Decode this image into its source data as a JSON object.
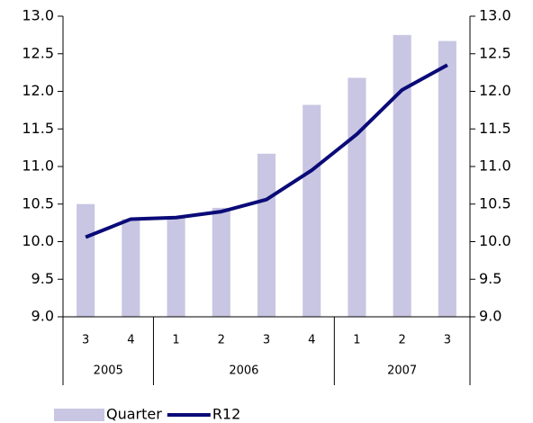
{
  "chart_data": {
    "type": "bar-line",
    "groups": [
      {
        "label": "2005",
        "categories": [
          "3",
          "4"
        ]
      },
      {
        "label": "2006",
        "categories": [
          "1",
          "2",
          "3",
          "4"
        ]
      },
      {
        "label": "2007",
        "categories": [
          "1",
          "2",
          "3"
        ]
      }
    ],
    "series": [
      {
        "name": "Quarter",
        "type": "bar",
        "color": "#c8c6e2",
        "values": [
          10.5,
          10.3,
          10.33,
          10.45,
          11.17,
          11.82,
          12.18,
          12.75,
          12.67
        ]
      },
      {
        "name": "R12",
        "type": "line",
        "axis": "y2",
        "color": "#0a0a78",
        "values": [
          10.06,
          10.3,
          10.32,
          10.4,
          10.56,
          10.95,
          11.43,
          12.02,
          12.35
        ]
      }
    ],
    "ylim": [
      9,
      13
    ],
    "yticks": [
      {
        "value": 9,
        "label": "9.0"
      },
      9.5,
      {
        "value": 10,
        "label": "10.0"
      },
      10.5,
      {
        "value": 11,
        "label": "11.0"
      },
      11.5,
      {
        "value": 12,
        "label": "12.0"
      },
      12.5,
      {
        "value": 13,
        "label": "13.0"
      }
    ],
    "y2lim": [
      9,
      13
    ],
    "y2ticks": [
      {
        "value": 9,
        "label": "9.0"
      },
      9.5,
      {
        "value": 10,
        "label": "10.0"
      },
      10.5,
      {
        "value": 11,
        "label": "11.0"
      },
      11.5,
      {
        "value": 12,
        "label": "12.0"
      },
      12.5,
      {
        "value": 13,
        "label": "13.0"
      }
    ],
    "legend": "bottom-left"
  }
}
